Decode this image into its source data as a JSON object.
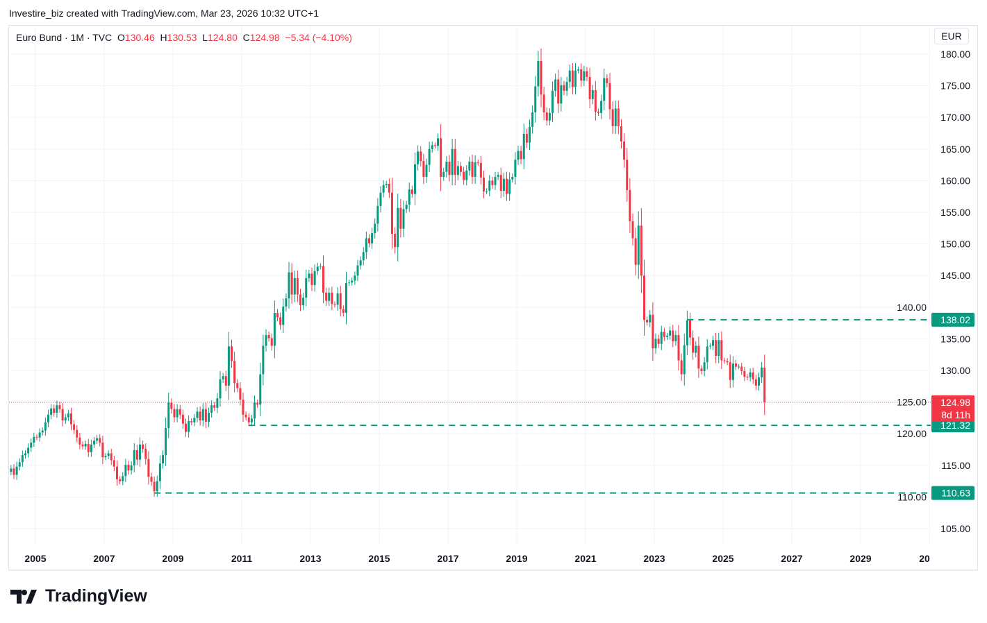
{
  "credit": "Investire_biz created with TradingView.com, Mar 23, 2026 10:32 UTC+1",
  "legend": {
    "symbol": "Euro Bund · 1M · TVC",
    "o_label": "O",
    "o": "130.46",
    "h_label": "H",
    "h": "130.53",
    "l_label": "L",
    "l": "124.80",
    "c_label": "C",
    "c": "124.98",
    "change": "−5.34 (−4.10%)"
  },
  "currency": "EUR",
  "brand": "TradingView",
  "colors": {
    "up": "#089981",
    "down": "#f23645",
    "grid": "#f0f3fa"
  },
  "chart_data": {
    "type": "candlestick",
    "interval": "1M",
    "start": "2004-04",
    "ylim": [
      103,
      181
    ],
    "yticks": [
      105,
      110,
      115,
      120,
      125,
      130,
      135,
      140,
      145,
      150,
      155,
      160,
      165,
      170,
      175,
      180
    ],
    "xticks": [
      "2005",
      "2007",
      "2009",
      "2011",
      "2013",
      "2015",
      "2017",
      "2019",
      "2021",
      "2023",
      "2025",
      "2027",
      "2029",
      "20"
    ],
    "last_price": "124.98",
    "countdown": "8d 11h",
    "levels": [
      {
        "price": "138.02",
        "from": "2023-12"
      },
      {
        "price": "121.32",
        "from": "2011-03"
      },
      {
        "price": "110.63",
        "from": "2008-06"
      }
    ],
    "closes": [
      114.5,
      113.5,
      114.8,
      115.5,
      116.6,
      116.9,
      117.8,
      118.6,
      119.5,
      119.4,
      120.2,
      120.5,
      121.8,
      123.0,
      124.0,
      123.3,
      124.5,
      123.9,
      122.1,
      122.6,
      123.2,
      121.5,
      120.6,
      119.4,
      118.3,
      118.0,
      118.4,
      117.1,
      118.3,
      118.9,
      119.3,
      118.6,
      116.3,
      116.5,
      116.9,
      115.8,
      114.8,
      112.8,
      112.5,
      113.3,
      115.1,
      114.2,
      115.0,
      117.4,
      115.9,
      118.3,
      117.6,
      116.0,
      113.2,
      112.4,
      110.9,
      112.5,
      115.3,
      116.6,
      120.9,
      124.9,
      123.9,
      122.6,
      123.9,
      123.0,
      121.6,
      120.3,
      122.0,
      121.8,
      122.5,
      123.5,
      122.1,
      123.9,
      121.9,
      123.3,
      124.5,
      124.1,
      125.6,
      128.6,
      129.1,
      127.6,
      133.8,
      131.5,
      128.0,
      127.2,
      125.4,
      123.0,
      122.6,
      121.8,
      122.4,
      124.9,
      124.6,
      129.4,
      133.9,
      135.6,
      135.1,
      133.9,
      139.1,
      138.4,
      137.2,
      140.1,
      141.4,
      145.5,
      142.0,
      144.6,
      142.0,
      140.3,
      141.5,
      144.6,
      145.3,
      143.5,
      145.7,
      146.4,
      146.5,
      142.3,
      141.0,
      142.3,
      140.5,
      140.4,
      142.2,
      139.7,
      139.1,
      143.8,
      143.9,
      144.2,
      145.0,
      146.6,
      147.4,
      148.7,
      150.9,
      150.1,
      151.7,
      153.2,
      156.0,
      158.1,
      159.3,
      159.5,
      158.1,
      151.6,
      149.5,
      155.7,
      152.4,
      155.5,
      156.2,
      158.6,
      157.9,
      162.6,
      164.6,
      163.1,
      160.6,
      162.5,
      165.0,
      165.6,
      165.5,
      166.7,
      160.6,
      161.4,
      163.0,
      160.9,
      165.0,
      160.9,
      162.3,
      161.4,
      160.1,
      161.6,
      163.0,
      160.6,
      162.9,
      162.8,
      160.5,
      158.3,
      158.4,
      160.0,
      159.3,
      160.6,
      160.9,
      158.4,
      160.3,
      157.9,
      160.2,
      160.6,
      163.3,
      164.7,
      163.4,
      167.4,
      166.0,
      168.5,
      170.8,
      174.9,
      178.9,
      173.6,
      170.8,
      169.5,
      170.7,
      174.2,
      176.0,
      172.2,
      175.1,
      174.2,
      175.6,
      177.4,
      174.8,
      177.4,
      177.6,
      175.8,
      177.3,
      176.4,
      172.9,
      174.3,
      170.9,
      170.7,
      172.6,
      176.2,
      175.4,
      171.3,
      168.6,
      171.4,
      168.6,
      166.2,
      163.3,
      158.5,
      153.6,
      150.9,
      146.7,
      152.9,
      145.0,
      138.0,
      137.6,
      138.8,
      133.5,
      135.0,
      134.2,
      136.1,
      135.3,
      135.5,
      136.3,
      134.6,
      135.6,
      131.6,
      129.4,
      134.0,
      137.9,
      135.2,
      132.8,
      133.9,
      130.3,
      129.9,
      131.3,
      133.8,
      133.9,
      134.8,
      132.3,
      134.8,
      131.6,
      131.5,
      131.3,
      128.5,
      131.1,
      130.6,
      130.6,
      129.9,
      129.0,
      128.9,
      129.7,
      128.6,
      127.6,
      128.9,
      130.46,
      124.98
    ]
  }
}
